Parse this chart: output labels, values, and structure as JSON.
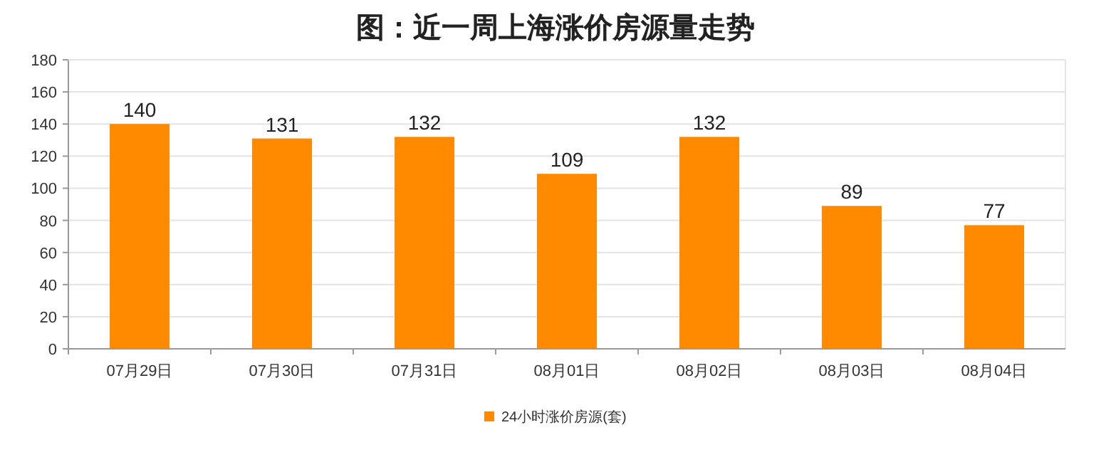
{
  "chart_data": {
    "type": "bar",
    "title": "图：近一周上海涨价房源量走势",
    "categories": [
      "07月29日",
      "07月30日",
      "07月31日",
      "08月01日",
      "08月02日",
      "08月03日",
      "08月04日"
    ],
    "series": [
      {
        "name": "24小时涨价房源(套)",
        "color": "#ff8a00",
        "values": [
          140,
          131,
          132,
          109,
          132,
          89,
          77
        ]
      }
    ],
    "ylim": [
      0,
      180
    ],
    "yticks": [
      0,
      20,
      40,
      60,
      80,
      100,
      120,
      140,
      160,
      180
    ],
    "grid": "y",
    "data_labels": true,
    "legend": "bottom"
  }
}
